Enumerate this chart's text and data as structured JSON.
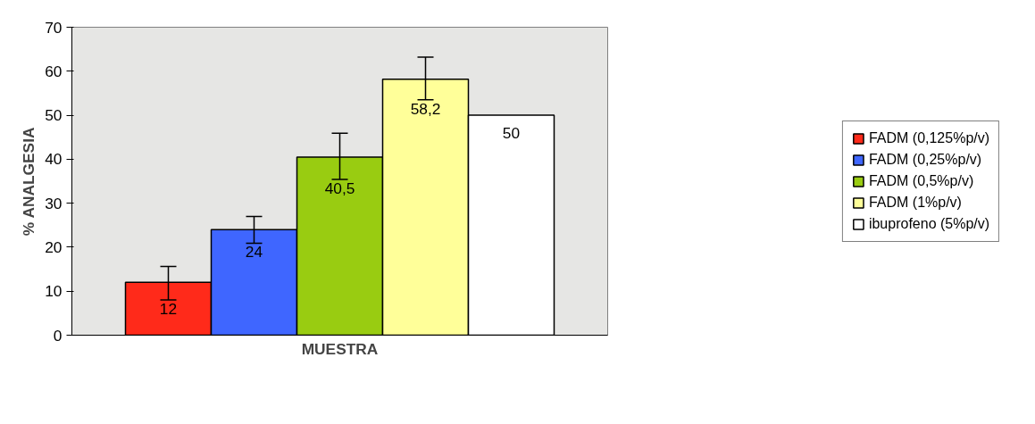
{
  "chart_data": {
    "type": "bar",
    "xlabel": "MUESTRA",
    "ylabel": "% ANALGESIA",
    "categories": [
      null
    ],
    "series": [
      {
        "name": "FADM (0,125%p/v)",
        "color": "#ff2a1a",
        "values": [
          12
        ],
        "value_labels": [
          "12"
        ],
        "errors": [
          [
            8,
            15.6
          ]
        ]
      },
      {
        "name": "FADM (0,25%p/v)",
        "color": "#3f66ff",
        "values": [
          24
        ],
        "value_labels": [
          "24"
        ],
        "errors": [
          [
            20.9,
            27
          ]
        ]
      },
      {
        "name": "FADM (0,5%p/v)",
        "color": "#99cc11",
        "values": [
          40.5
        ],
        "value_labels": [
          "40,5"
        ],
        "errors": [
          [
            35.4,
            45.9
          ]
        ]
      },
      {
        "name": "FADM (1%p/v)",
        "color": "#ffff99",
        "values": [
          58.2
        ],
        "value_labels": [
          "58,2"
        ],
        "errors": [
          [
            53.5,
            63.2
          ]
        ]
      },
      {
        "name": "ibuprofeno (5%p/v)",
        "color": "#ffffff",
        "values": [
          50
        ],
        "value_labels": [
          "50"
        ],
        "errors": [
          null
        ]
      }
    ],
    "ylim": [
      0,
      70
    ],
    "yticks": [
      0,
      10,
      20,
      30,
      40,
      50,
      60,
      70
    ],
    "grid": false,
    "legend": "right"
  }
}
